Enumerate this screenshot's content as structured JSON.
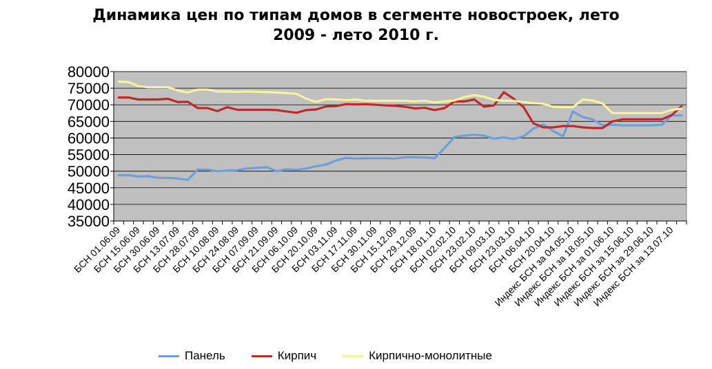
{
  "chart_data": {
    "type": "line",
    "title_lines": [
      "Динамика цен по типам домов в сегменте новостроек, лето",
      "2009 - лето 2010 г."
    ],
    "xlabel": "",
    "ylabel": "",
    "ylim": [
      35000,
      80000
    ],
    "yticks": [
      35000,
      40000,
      45000,
      50000,
      55000,
      60000,
      65000,
      70000,
      75000,
      80000
    ],
    "grid": true,
    "legend_position": "bottom",
    "plot_background": "#c0c0c0",
    "categories": [
      "БСН 01.06.09",
      "",
      "БСН 15.06.09",
      "",
      "БСН 30.06.09",
      "",
      "БСН 13.07.09",
      "",
      "БСН 28.07.09",
      "",
      "БСН 10.08.09",
      "",
      "БСН 24.08.09",
      "",
      "БСН 07.09.09",
      "",
      "БСН 21.09.09",
      "",
      "БСН 06.10.09",
      "",
      "БСН 20.10.09",
      "",
      "БСН 03.11.09",
      "",
      "БСН 17.11.09",
      "",
      "БСН 30.11.09",
      "",
      "БСН 15.12.09",
      "",
      "БСН 29.12.09",
      "",
      "БСН 18.01.10",
      "",
      "БСН 02.02.10",
      "",
      "БСН 23.02.10",
      "",
      "БСН 09.03.10",
      "",
      "БСН 23.03.10",
      "",
      "БСН 06.04.10",
      "",
      "БСН 20.04.10",
      "",
      "Индекс БСН за 04.05.10",
      "",
      "Индекс БСН за 18.05.10",
      "",
      "Индекс БСН за 01.06.10",
      "",
      "Индекс БСН за 15.06.10",
      "",
      "Индекс БСН за 29.06.10",
      "",
      "Индекс БСН за 13.07.10",
      ""
    ],
    "series": [
      {
        "name": "Панель",
        "color": "#6d9fdc",
        "values": [
          48800,
          48800,
          48400,
          48500,
          48000,
          48000,
          47800,
          47400,
          50500,
          50500,
          50000,
          50200,
          50300,
          50800,
          51000,
          51200,
          50000,
          50600,
          50400,
          50800,
          51500,
          52000,
          53200,
          54000,
          53800,
          53900,
          53900,
          53900,
          53800,
          54200,
          54200,
          54100,
          53900,
          57000,
          60300,
          60700,
          61000,
          60700,
          59800,
          60200,
          59700,
          60500,
          62800,
          64100,
          62100,
          60500,
          68000,
          66300,
          65600,
          63800,
          64000,
          63800,
          63800,
          63800,
          63800,
          64000,
          66800,
          66800
        ]
      },
      {
        "name": "Кирпич",
        "color": "#c0292a",
        "values": [
          72200,
          72200,
          71600,
          71600,
          71600,
          71800,
          70800,
          70900,
          69000,
          69000,
          68100,
          69300,
          68500,
          68500,
          68500,
          68500,
          68400,
          68000,
          67600,
          68400,
          68600,
          69500,
          69600,
          70200,
          70100,
          70200,
          70000,
          69800,
          69700,
          69400,
          68900,
          69100,
          68400,
          69000,
          71000,
          71000,
          71600,
          69400,
          69800,
          73800,
          71800,
          69300,
          64400,
          63200,
          63200,
          63600,
          63600,
          63200,
          63000,
          63000,
          65000,
          65600,
          65600,
          65600,
          65600,
          65600,
          66900,
          69500
        ]
      },
      {
        "name": "Кирпично-монолитные",
        "color": "#f7f29c",
        "values": [
          77000,
          76800,
          75600,
          75300,
          75300,
          75300,
          74300,
          73700,
          74600,
          74600,
          74000,
          74000,
          73900,
          74000,
          73900,
          73800,
          73700,
          73500,
          73300,
          71800,
          70900,
          71700,
          71600,
          71400,
          71600,
          71200,
          71200,
          71200,
          71200,
          71200,
          71000,
          71200,
          70700,
          71000,
          71300,
          72300,
          72900,
          72400,
          71500,
          71200,
          71200,
          70800,
          70500,
          70300,
          69400,
          69300,
          69300,
          71600,
          71300,
          70400,
          67500,
          67500,
          67500,
          67500,
          67500,
          67500,
          68500,
          68800
        ]
      }
    ]
  }
}
